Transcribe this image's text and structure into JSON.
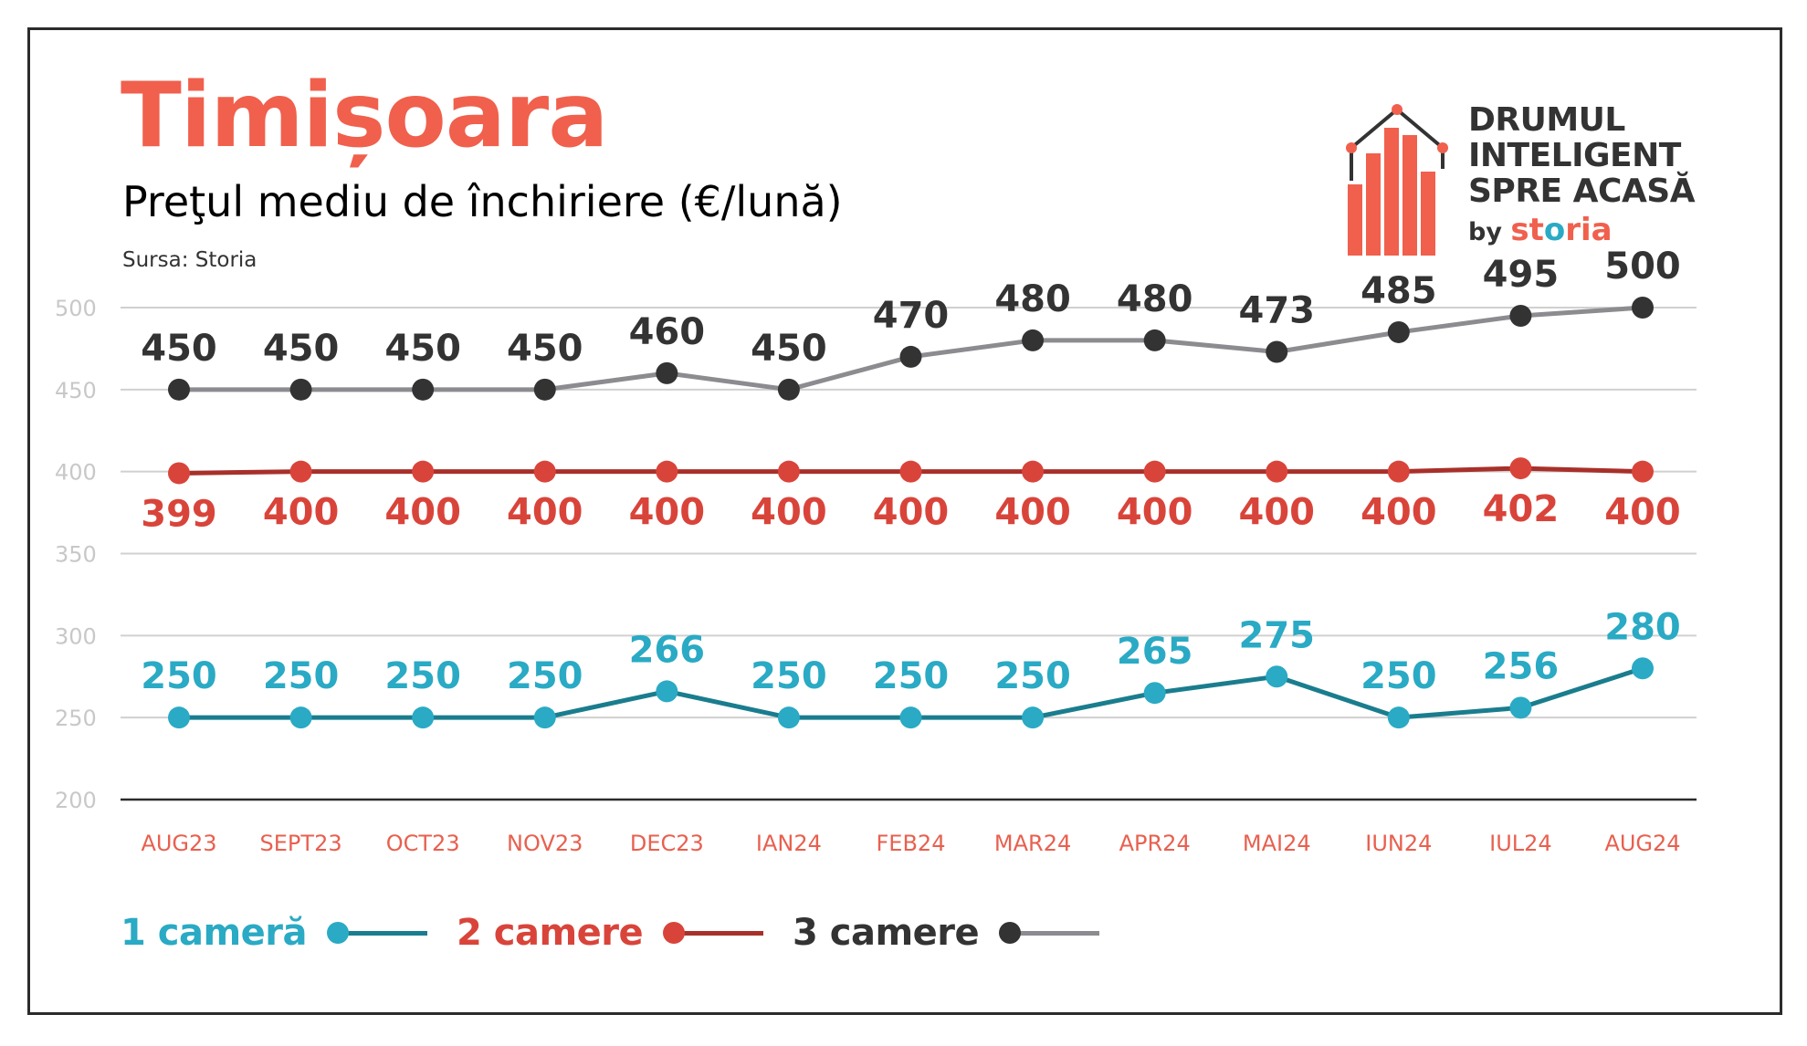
{
  "header": {
    "title": "Timișoara",
    "subtitle": "Preţul mediu de închiriere (€/lună)",
    "source": "Sursa: Storia"
  },
  "brand": {
    "line1": "DRUMUL",
    "line2": "INTELIGENT",
    "line3": "SPRE ACASĂ",
    "by": "by",
    "name_a": "st",
    "name_b": "o",
    "name_c": "ria",
    "icon": "house-bar-chart-icon",
    "color": "#f0604d",
    "accent": "#2aaac4"
  },
  "colors": {
    "title": "#f0604d",
    "axis_labels": "#e8604f",
    "grid": "#d0d0d0",
    "tick_labels": "#c8c8c8",
    "axis": "#2b2b2b"
  },
  "chart_data": {
    "type": "line",
    "categories": [
      "AUG23",
      "SEPT23",
      "OCT23",
      "NOV23",
      "DEC23",
      "IAN24",
      "FEB24",
      "MAR24",
      "APR24",
      "MAI24",
      "IUN24",
      "IUL24",
      "AUG24"
    ],
    "yticks": [
      200,
      250,
      300,
      350,
      400,
      450,
      500
    ],
    "ylim": [
      200,
      500
    ],
    "grid": true,
    "legend_position": "bottom-left",
    "series": [
      {
        "name": "1 cameră",
        "values": [
          250,
          250,
          250,
          250,
          266,
          250,
          250,
          250,
          265,
          275,
          250,
          256,
          280
        ],
        "line_color": "#1a7d8e",
        "marker_color": "#2aaac4",
        "label_color": "#2aaac4",
        "label_pos": "above"
      },
      {
        "name": "2 camere",
        "values": [
          399,
          400,
          400,
          400,
          400,
          400,
          400,
          400,
          400,
          400,
          400,
          402,
          400
        ],
        "line_color": "#a8302a",
        "marker_color": "#d9443a",
        "label_color": "#d9443a",
        "label_pos": "below"
      },
      {
        "name": "3 camere",
        "values": [
          450,
          450,
          450,
          450,
          460,
          450,
          470,
          480,
          480,
          473,
          485,
          495,
          500
        ],
        "line_color": "#8c8c90",
        "marker_color": "#333333",
        "label_color": "#333333",
        "label_pos": "above"
      }
    ]
  }
}
